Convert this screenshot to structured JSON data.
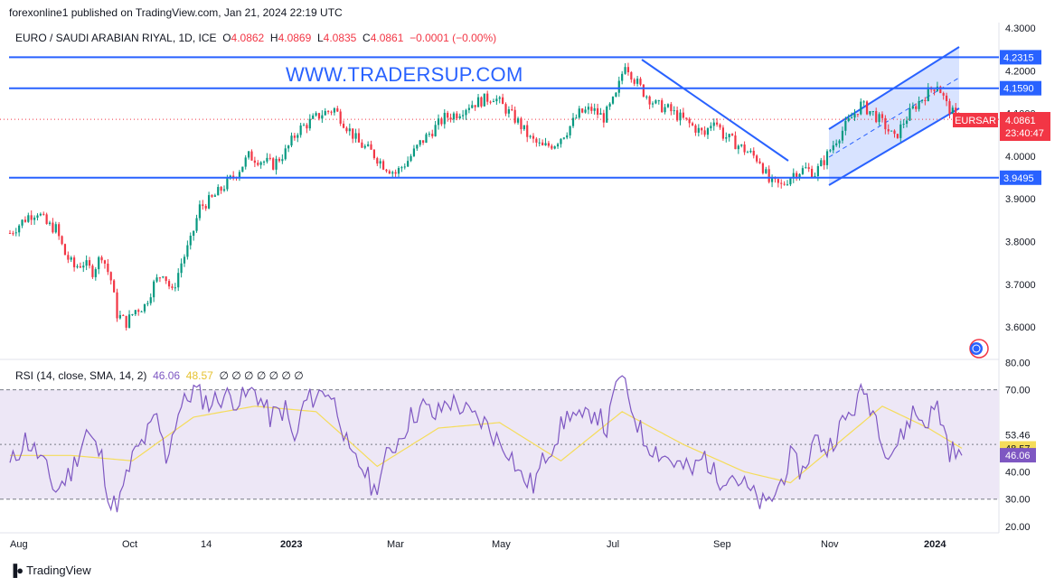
{
  "header": {
    "publisher": "forexonline1 published on TradingView.com, Jan 21, 2024 22:19 UTC"
  },
  "legend": {
    "symbol": "EURO / SAUDI ARABIAN RIYAL, 1D, ICE",
    "o_label": "O",
    "o": "4.0862",
    "h_label": "H",
    "h": "4.0869",
    "l_label": "L",
    "l": "4.0835",
    "c_label": "C",
    "c": "4.0861",
    "change": "−0.0001 (−0.00%)"
  },
  "watermark": "WWW.TRADERSUP.COM",
  "price_tag": {
    "symbol": "EURSAR",
    "price": "4.0861",
    "countdown": "23:40:47"
  },
  "rsi_legend": {
    "label": "RSI (14, close, SMA, 14, 2)",
    "value": "46.06",
    "sma": "48.57",
    "extras": "∅ ∅ ∅ ∅ ∅ ∅ ∅"
  },
  "brand": {
    "logo_icon": "tradingview-logo-icon",
    "name": "TradingView"
  },
  "colors": {
    "up": "#089981",
    "down": "#f23645",
    "lines": "#2962ff",
    "rsi": "#7e57c2",
    "rsi_sma": "#f5dc5a",
    "rsi_band": "#ede7f6"
  },
  "chart_data": [
    {
      "type": "candlestick",
      "title": "EURO / SAUDI ARABIAN RIYAL, 1D, ICE",
      "x_ticks": [
        "Aug",
        "Oct",
        "14",
        "2023",
        "Mar",
        "May",
        "Jul",
        "Sep",
        "Nov",
        "2024"
      ],
      "y_ticks": [
        "4.3000",
        "4.2000",
        "4.1000",
        "4.0000",
        "3.9000",
        "3.8000",
        "3.7000",
        "3.6000"
      ],
      "ylim": [
        3.56,
        4.31
      ],
      "horizontal_levels": [
        "4.2315",
        "4.1590",
        "3.9495"
      ],
      "last_price": 4.0861,
      "anchors": [
        [
          0,
          3.82
        ],
        [
          3,
          3.84
        ],
        [
          6,
          3.86
        ],
        [
          9,
          3.87
        ],
        [
          12,
          3.84
        ],
        [
          15,
          3.83
        ],
        [
          18,
          3.77
        ],
        [
          21,
          3.74
        ],
        [
          24,
          3.75
        ],
        [
          27,
          3.73
        ],
        [
          30,
          3.77
        ],
        [
          33,
          3.71
        ],
        [
          35,
          3.63
        ],
        [
          38,
          3.61
        ],
        [
          41,
          3.64
        ],
        [
          44,
          3.65
        ],
        [
          47,
          3.7
        ],
        [
          50,
          3.73
        ],
        [
          53,
          3.68
        ],
        [
          56,
          3.75
        ],
        [
          59,
          3.8
        ],
        [
          62,
          3.88
        ],
        [
          66,
          3.9
        ],
        [
          70,
          3.93
        ],
        [
          74,
          3.96
        ],
        [
          78,
          4.0
        ],
        [
          82,
          3.99
        ],
        [
          86,
          3.98
        ],
        [
          90,
          4.01
        ],
        [
          94,
          4.06
        ],
        [
          98,
          4.08
        ],
        [
          102,
          4.1
        ],
        [
          106,
          4.11
        ],
        [
          110,
          4.07
        ],
        [
          114,
          4.03
        ],
        [
          118,
          4.01
        ],
        [
          122,
          3.98
        ],
        [
          126,
          3.96
        ],
        [
          130,
          3.99
        ],
        [
          134,
          4.03
        ],
        [
          138,
          4.06
        ],
        [
          142,
          4.09
        ],
        [
          146,
          4.1
        ],
        [
          150,
          4.12
        ],
        [
          154,
          4.13
        ],
        [
          158,
          4.14
        ],
        [
          162,
          4.11
        ],
        [
          166,
          4.08
        ],
        [
          170,
          4.04
        ],
        [
          174,
          4.02
        ],
        [
          178,
          4.03
        ],
        [
          182,
          4.06
        ],
        [
          186,
          4.1
        ],
        [
          190,
          4.11
        ],
        [
          194,
          4.09
        ],
        [
          198,
          4.14
        ],
        [
          201,
          4.22
        ],
        [
          204,
          4.18
        ],
        [
          207,
          4.15
        ],
        [
          211,
          4.12
        ],
        [
          215,
          4.11
        ],
        [
          219,
          4.09
        ],
        [
          223,
          4.07
        ],
        [
          227,
          4.05
        ],
        [
          230,
          4.09
        ],
        [
          233,
          4.05
        ],
        [
          237,
          4.03
        ],
        [
          241,
          4.01
        ],
        [
          245,
          3.99
        ],
        [
          248,
          3.94
        ],
        [
          252,
          3.93
        ],
        [
          256,
          3.96
        ],
        [
          260,
          3.97
        ],
        [
          263,
          3.96
        ],
        [
          266,
          3.99
        ],
        [
          270,
          4.04
        ],
        [
          274,
          4.08
        ],
        [
          278,
          4.12
        ],
        [
          282,
          4.1
        ],
        [
          286,
          4.07
        ],
        [
          289,
          4.04
        ],
        [
          292,
          4.08
        ],
        [
          296,
          4.12
        ],
        [
          300,
          4.15
        ],
        [
          303,
          4.17
        ],
        [
          306,
          4.12
        ],
        [
          309,
          4.09
        ]
      ],
      "annotations": {
        "channel": "ascending channel (Nov 2023 – Jan 2024)",
        "downtrend": "descending trendline from Jul 2023 high"
      }
    },
    {
      "type": "line",
      "title": "RSI (14, close, SMA, 14, 2)",
      "y_ticks": [
        "80.00",
        "70.00",
        "53.46",
        "48.57",
        "40.00",
        "30.00",
        "20.00"
      ],
      "ylim": [
        18,
        82
      ],
      "bands": [
        30,
        70
      ],
      "last_rsi": 46.06,
      "last_sma": 48.57,
      "series": [
        {
          "name": "RSI",
          "anchors": [
            [
              0,
              42
            ],
            [
              5,
              52
            ],
            [
              10,
              45
            ],
            [
              15,
              33
            ],
            [
              20,
              40
            ],
            [
              25,
              55
            ],
            [
              30,
              45
            ],
            [
              33,
              27
            ],
            [
              36,
              30
            ],
            [
              40,
              45
            ],
            [
              44,
              52
            ],
            [
              48,
              60
            ],
            [
              51,
              45
            ],
            [
              55,
              62
            ],
            [
              60,
              70
            ],
            [
              65,
              65
            ],
            [
              70,
              68
            ],
            [
              75,
              66
            ],
            [
              80,
              70
            ],
            [
              85,
              60
            ],
            [
              90,
              63
            ],
            [
              93,
              50
            ],
            [
              96,
              65
            ],
            [
              100,
              68
            ],
            [
              104,
              70
            ],
            [
              108,
              60
            ],
            [
              111,
              45
            ],
            [
              115,
              42
            ],
            [
              119,
              33
            ],
            [
              123,
              45
            ],
            [
              127,
              52
            ],
            [
              131,
              60
            ],
            [
              135,
              64
            ],
            [
              139,
              60
            ],
            [
              143,
              66
            ],
            [
              147,
              64
            ],
            [
              151,
              60
            ],
            [
              155,
              58
            ],
            [
              159,
              52
            ],
            [
              163,
              48
            ],
            [
              167,
              38
            ],
            [
              171,
              35
            ],
            [
              175,
              46
            ],
            [
              179,
              54
            ],
            [
              183,
              62
            ],
            [
              187,
              58
            ],
            [
              191,
              63
            ],
            [
              195,
              55
            ],
            [
              199,
              76
            ],
            [
              203,
              64
            ],
            [
              207,
              52
            ],
            [
              211,
              48
            ],
            [
              215,
              45
            ],
            [
              219,
              42
            ],
            [
              223,
              40
            ],
            [
              227,
              46
            ],
            [
              231,
              37
            ],
            [
              235,
              40
            ],
            [
              239,
              36
            ],
            [
              243,
              31
            ],
            [
              247,
              27
            ],
            [
              251,
              34
            ],
            [
              255,
              45
            ],
            [
              259,
              40
            ],
            [
              263,
              52
            ],
            [
              267,
              48
            ],
            [
              271,
              56
            ],
            [
              275,
              62
            ],
            [
              279,
              70
            ],
            [
              283,
              60
            ],
            [
              287,
              46
            ],
            [
              291,
              52
            ],
            [
              295,
              62
            ],
            [
              299,
              58
            ],
            [
              303,
              64
            ],
            [
              307,
              48
            ],
            [
              311,
              46
            ]
          ]
        },
        {
          "name": "RSI SMA",
          "anchors": [
            [
              0,
              46
            ],
            [
              20,
              46
            ],
            [
              40,
              44
            ],
            [
              60,
              60
            ],
            [
              80,
              64
            ],
            [
              100,
              62
            ],
            [
              120,
              42
            ],
            [
              140,
              56
            ],
            [
              160,
              58
            ],
            [
              180,
              44
            ],
            [
              200,
              62
            ],
            [
              220,
              50
            ],
            [
              240,
              40
            ],
            [
              255,
              36
            ],
            [
              270,
              50
            ],
            [
              285,
              64
            ],
            [
              300,
              56
            ],
            [
              311,
              48.6
            ]
          ]
        }
      ]
    }
  ],
  "x_axis_labels": [
    "Aug",
    "Oct",
    "14",
    "2023",
    "Mar",
    "May",
    "Jul",
    "Sep",
    "Nov",
    "2024"
  ],
  "rsi_axis_labels": [
    "80.00",
    "70.00",
    "53.46",
    "48.57",
    "40.00",
    "30.00",
    "20.00"
  ],
  "price_axis_labels": [
    "4.3000",
    "4.2000",
    "4.1000",
    "4.0000",
    "3.9000",
    "3.8000",
    "3.7000",
    "3.6000"
  ],
  "level_labels": [
    "4.2315",
    "4.1590",
    "3.9495"
  ]
}
